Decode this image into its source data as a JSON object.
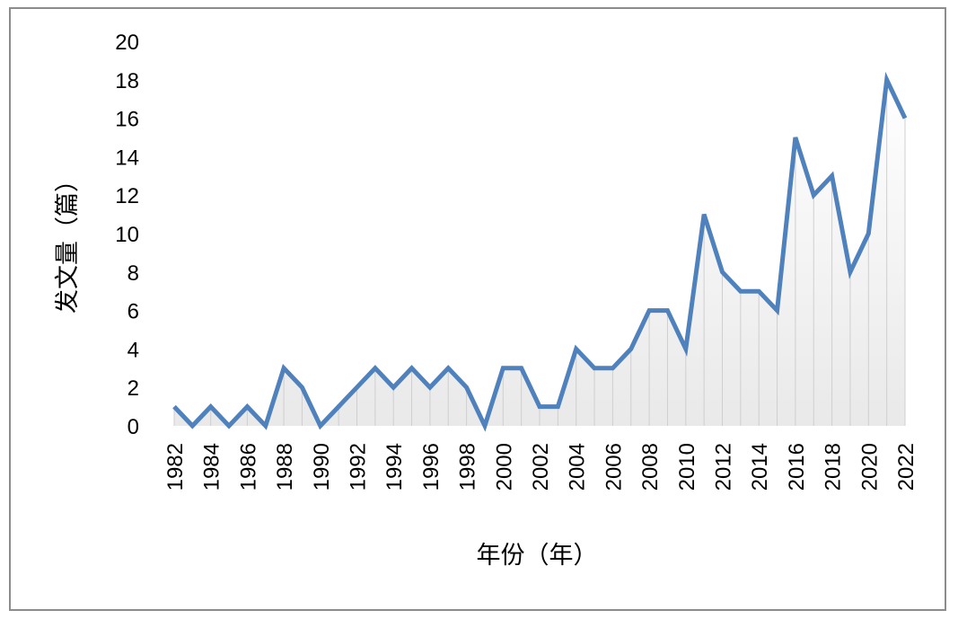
{
  "chart_data": {
    "type": "line",
    "title": "",
    "xlabel": "年份（年）",
    "ylabel": "发文量（篇）",
    "ylim": [
      0,
      20
    ],
    "yticks": [
      "0",
      "2",
      "4",
      "6",
      "8",
      "10",
      "12",
      "14",
      "16",
      "18",
      "20"
    ],
    "xticks": [
      "1982",
      "1984",
      "1986",
      "1988",
      "1990",
      "1992",
      "1994",
      "1996",
      "1998",
      "2000",
      "2002",
      "2004",
      "2006",
      "2008",
      "2010",
      "2012",
      "2014",
      "2016",
      "2018",
      "2020",
      "2022"
    ],
    "x": [
      1982,
      1983,
      1984,
      1985,
      1986,
      1987,
      1988,
      1989,
      1990,
      1991,
      1992,
      1993,
      1994,
      1995,
      1996,
      1997,
      1998,
      1999,
      2000,
      2001,
      2002,
      2003,
      2004,
      2005,
      2006,
      2007,
      2008,
      2009,
      2010,
      2011,
      2012,
      2013,
      2014,
      2015,
      2016,
      2017,
      2018,
      2019,
      2020,
      2021,
      2022
    ],
    "series": [
      {
        "values": [
          1,
          0,
          1,
          0,
          1,
          0,
          3,
          2,
          0,
          1,
          2,
          3,
          2,
          3,
          2,
          3,
          2,
          0,
          3,
          3,
          1,
          1,
          4,
          3,
          3,
          4,
          6,
          6,
          4,
          11,
          8,
          7,
          7,
          6,
          15,
          12,
          13,
          8,
          10,
          18,
          16
        ]
      }
    ],
    "grid": false,
    "drop_lines": true,
    "line_color": "#4F81BD",
    "area_gradient": [
      "#ffffff",
      "#e9e9e9"
    ]
  }
}
